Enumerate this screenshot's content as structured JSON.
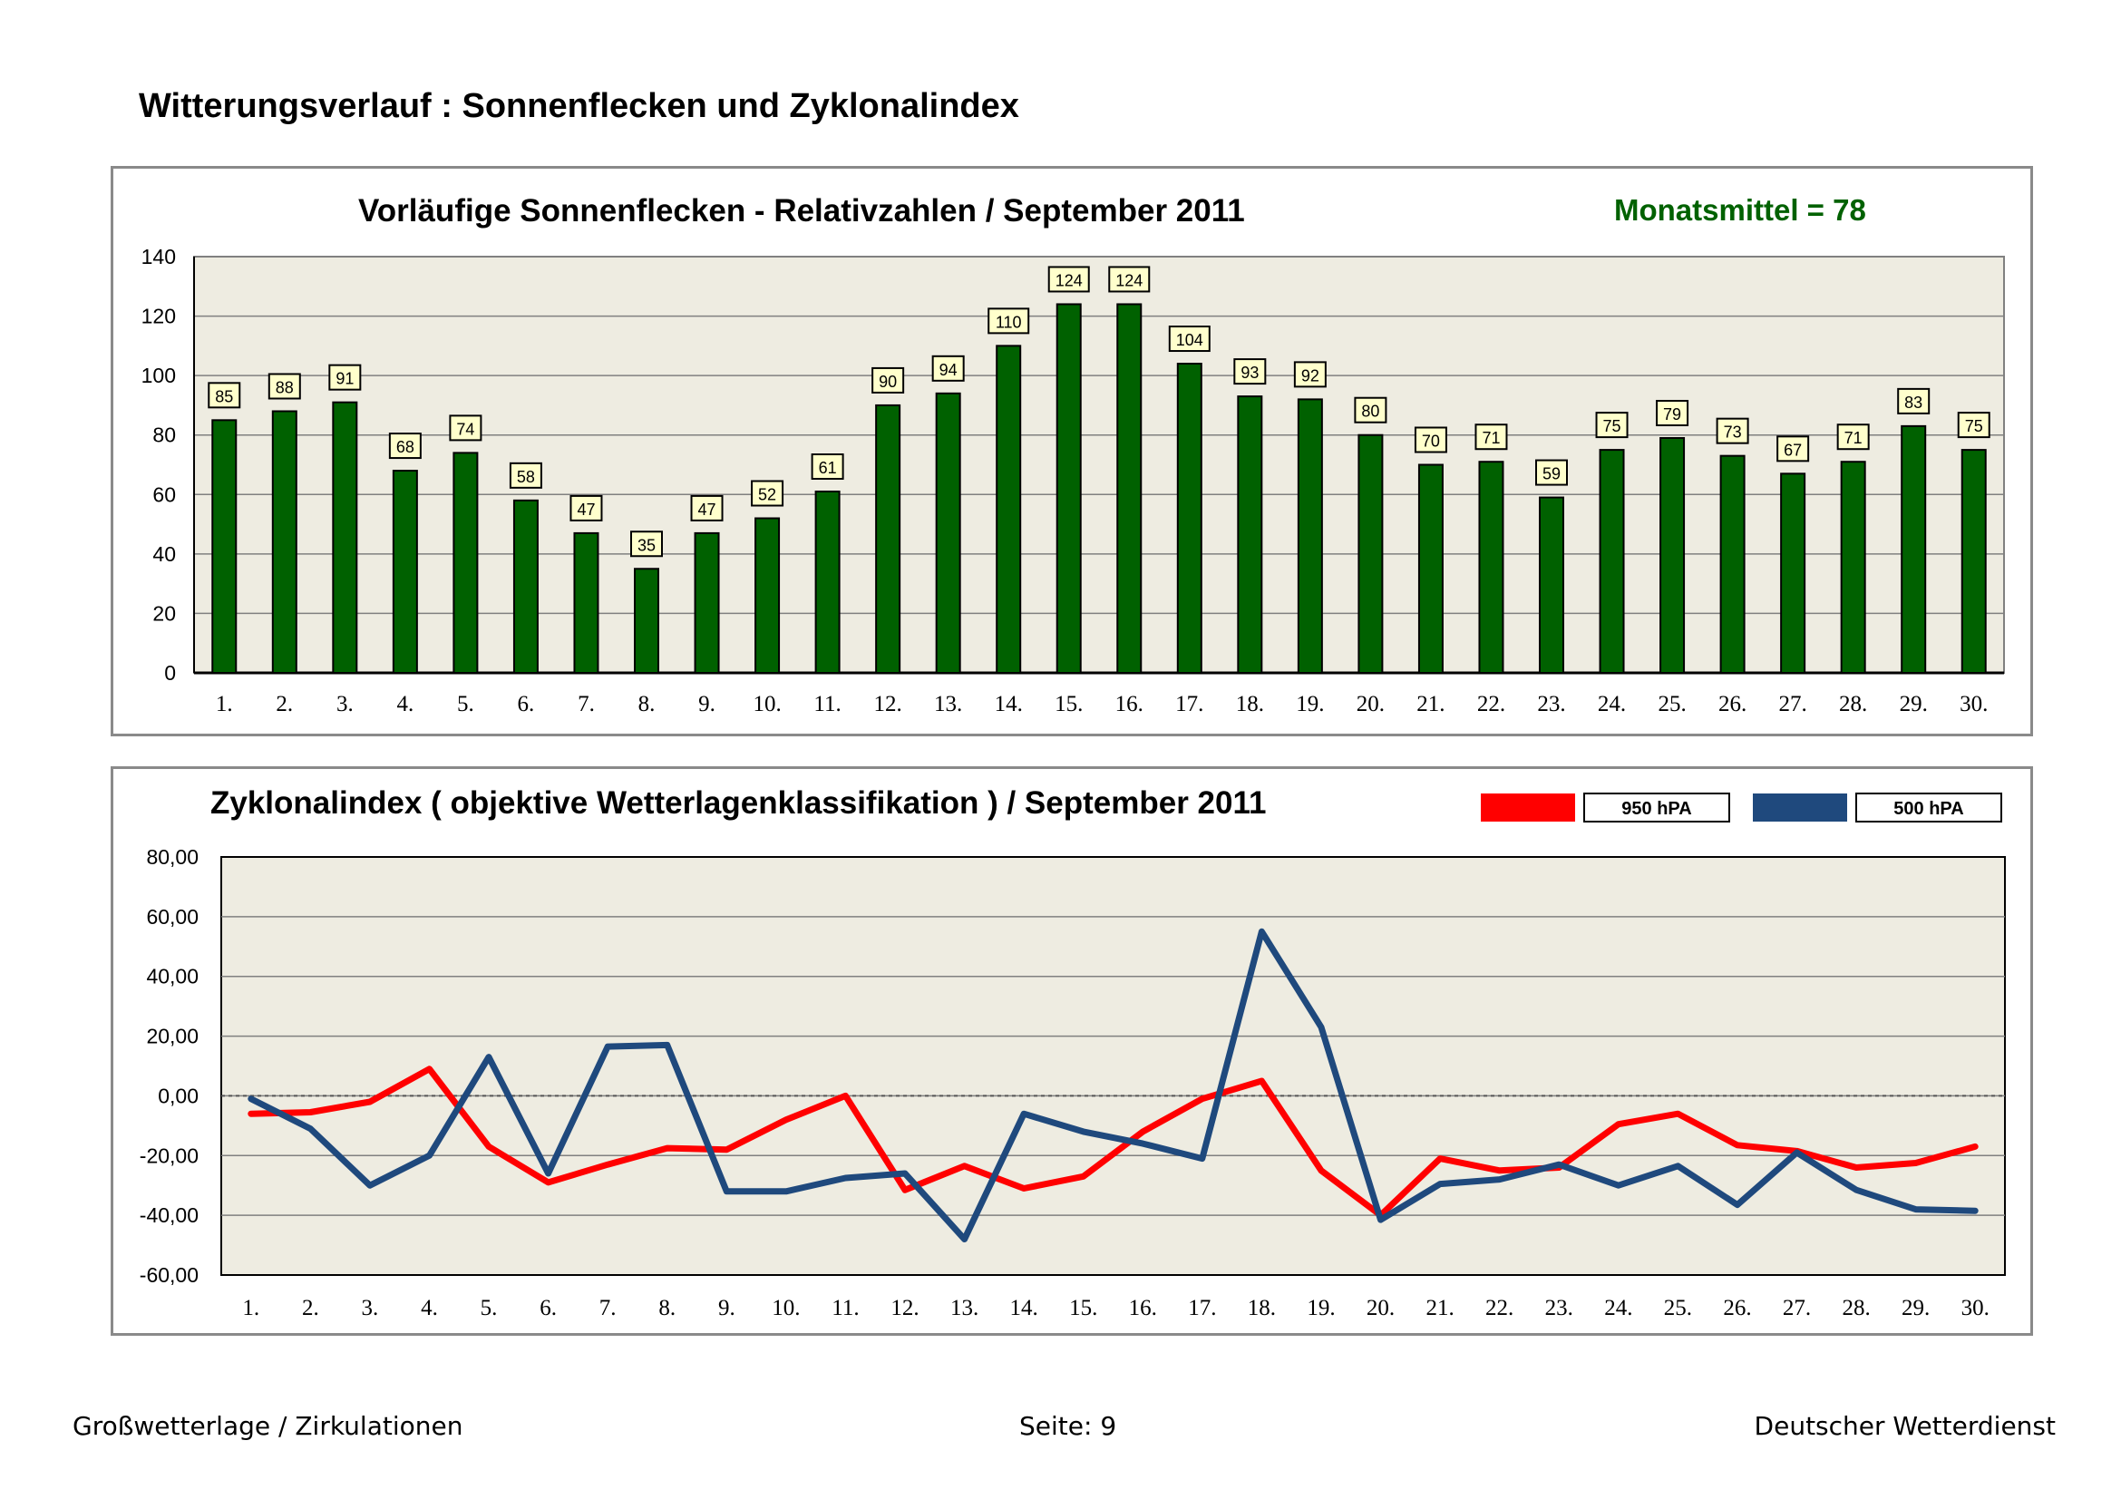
{
  "page": {
    "title": "Witterungsverlauf : Sonnenflecken und Zyklonalindex"
  },
  "chart_data": [
    {
      "type": "bar",
      "title": "Vorläufige Sonnenflecken - Relativzahlen  /   September 2011",
      "annotation": "Monatsmittel = 78",
      "categories": [
        "1.",
        "2.",
        "3.",
        "4.",
        "5.",
        "6.",
        "7.",
        "8.",
        "9.",
        "10.",
        "11.",
        "12.",
        "13.",
        "14.",
        "15.",
        "16.",
        "17.",
        "18.",
        "19.",
        "20.",
        "21.",
        "22.",
        "23.",
        "24.",
        "25.",
        "26.",
        "27.",
        "28.",
        "29.",
        "30."
      ],
      "values": [
        85,
        88,
        91,
        68,
        74,
        58,
        47,
        35,
        47,
        52,
        61,
        90,
        94,
        110,
        124,
        124,
        104,
        93,
        92,
        80,
        70,
        71,
        59,
        75,
        79,
        73,
        67,
        71,
        83,
        75
      ],
      "yticks": [
        "0",
        "20",
        "40",
        "60",
        "80",
        "100",
        "120",
        "140"
      ],
      "ylim": [
        0,
        140
      ],
      "grid": true,
      "xlabel": "",
      "ylabel": ""
    },
    {
      "type": "line",
      "title": "Zyklonalindex  ( objektive Wetterlagenklassifikation )  /  September 2011",
      "categories": [
        "1.",
        "2.",
        "3.",
        "4.",
        "5.",
        "6.",
        "7.",
        "8.",
        "9.",
        "10.",
        "11.",
        "12.",
        "13.",
        "14.",
        "15.",
        "16.",
        "17.",
        "18.",
        "19.",
        "20.",
        "21.",
        "22.",
        "23.",
        "24.",
        "25.",
        "26.",
        "27.",
        "28.",
        "29.",
        "30."
      ],
      "series": [
        {
          "name": "950 hPA",
          "color": "#ff0000",
          "values": [
            -6,
            -5.5,
            -2,
            9,
            -17,
            -29,
            -23,
            -17.5,
            -18,
            -8,
            0,
            -31.5,
            -23.5,
            -31,
            -27,
            -12,
            -1,
            5,
            -25,
            -40,
            -21,
            -25,
            -24,
            -9.5,
            -6,
            -16.5,
            -18.5,
            -24,
            -22.5,
            -17
          ]
        },
        {
          "name": "500 hPA",
          "color": "#1f497d",
          "values": [
            -1,
            -11,
            -30,
            -20,
            13,
            -26,
            16.5,
            17,
            -32,
            -32,
            -27.5,
            -26,
            -48,
            -6,
            -12,
            -16,
            -21,
            55,
            23,
            -41.5,
            -29.5,
            -28,
            -23,
            -30,
            -23.5,
            -36.5,
            -19,
            -31.5,
            -38,
            -38.5
          ]
        }
      ],
      "yticks": [
        "-60,00",
        "-40,00",
        "-20,00",
        "0,00",
        "20,00",
        "40,00",
        "60,00",
        "80,00"
      ],
      "ylim": [
        -60,
        80
      ],
      "legend_position": "top-right",
      "grid": true,
      "xlabel": "",
      "ylabel": ""
    }
  ],
  "colors": {
    "bar_fill": "#006100",
    "plot_bg": "#eeece1",
    "grid": "#808080",
    "mean_text": "#006100",
    "label_box": "#ffffcc"
  },
  "footer": {
    "left": "Großwetterlage / Zirkulationen",
    "center": "Seite: 9",
    "right": "Deutscher Wetterdienst"
  }
}
